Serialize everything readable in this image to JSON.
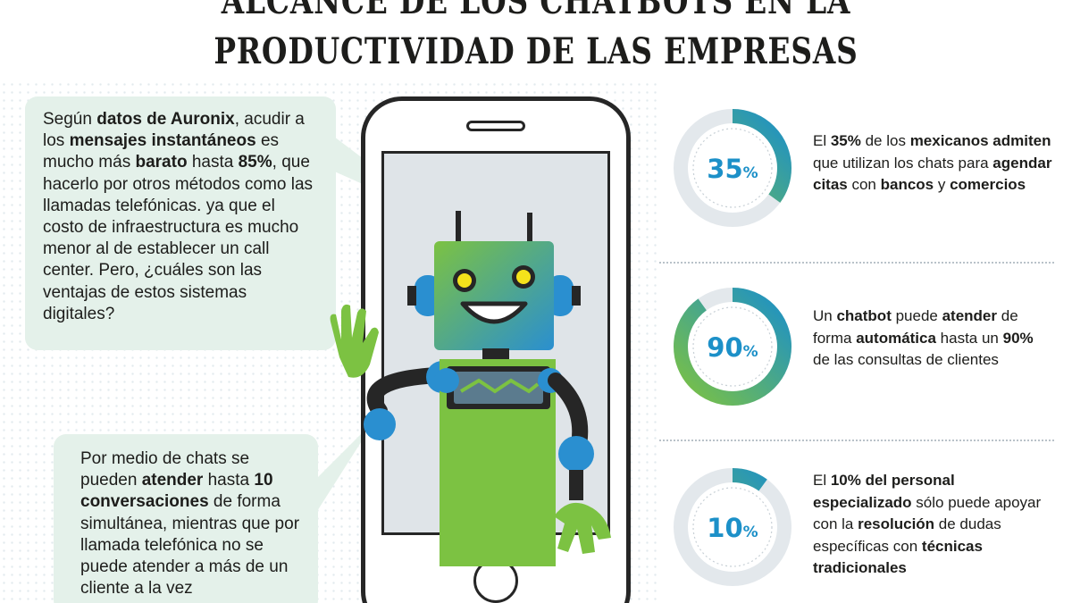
{
  "title": {
    "line1": "ALCANCE DE LOS CHATBOTS EN LA",
    "line2": "PRODUCTIVIDAD DE LAS EMPRESAS"
  },
  "bubble_top": {
    "segments": [
      {
        "t": "Según ",
        "b": false
      },
      {
        "t": "datos de Auronix",
        "b": true
      },
      {
        "t": ", acudir a los ",
        "b": false
      },
      {
        "t": "mensajes instantáneos",
        "b": true
      },
      {
        "t": " es mucho más ",
        "b": false
      },
      {
        "t": "barato",
        "b": true
      },
      {
        "t": " hasta ",
        "b": false
      },
      {
        "t": "85%",
        "b": true
      },
      {
        "t": ", que hacerlo por otros métodos como las llamadas telefónicas. ya que el costo de infraestructura es mucho menor al de establecer un call center. Pero, ¿cuáles son las ventajas de estos sistemas digitales?",
        "b": false
      }
    ]
  },
  "bubble_bottom": {
    "segments": [
      {
        "t": "Por medio de chats se pueden ",
        "b": false
      },
      {
        "t": "atender",
        "b": true
      },
      {
        "t": " hasta ",
        "b": false
      },
      {
        "t": "10 conversaciones",
        "b": true
      },
      {
        "t": " de forma simultánea, mientras que por llamada telefónica no se puede atender a más de un cliente a la vez",
        "b": false
      }
    ]
  },
  "stats": [
    {
      "value": "35",
      "unit": "%",
      "fraction": 0.35,
      "segments": [
        {
          "t": "El ",
          "b": false
        },
        {
          "t": "35%",
          "b": true
        },
        {
          "t": " de los ",
          "b": false
        },
        {
          "t": "mexicanos admiten",
          "b": true
        },
        {
          "t": " que utilizan los chats para ",
          "b": false
        },
        {
          "t": "agendar citas",
          "b": true
        },
        {
          "t": " con ",
          "b": false
        },
        {
          "t": "bancos",
          "b": true
        },
        {
          "t": " y ",
          "b": false
        },
        {
          "t": "comercios",
          "b": true
        }
      ]
    },
    {
      "value": "90",
      "unit": "%",
      "fraction": 0.9,
      "segments": [
        {
          "t": "Un ",
          "b": false
        },
        {
          "t": "chatbot",
          "b": true
        },
        {
          "t": " puede ",
          "b": false
        },
        {
          "t": "atender",
          "b": true
        },
        {
          "t": " de forma ",
          "b": false
        },
        {
          "t": "automática",
          "b": true
        },
        {
          "t": " hasta un ",
          "b": false
        },
        {
          "t": "90%",
          "b": true
        },
        {
          "t": " de las consultas de clientes",
          "b": false
        }
      ]
    },
    {
      "value": "10",
      "unit": "%",
      "fraction": 0.1,
      "segments": [
        {
          "t": "El ",
          "b": false
        },
        {
          "t": "10% del personal especializado",
          "b": true
        },
        {
          "t": " sólo puede apoyar con la ",
          "b": false
        },
        {
          "t": "resolución",
          "b": true
        },
        {
          "t": " de dudas específicas con ",
          "b": false
        },
        {
          "t": "técnicas tradicionales",
          "b": true
        }
      ]
    }
  ],
  "colors": {
    "ring_track": "#e3e8ec",
    "ring_start": "#7cc242",
    "ring_end": "#1c90c8",
    "bubble": "#e4f1ea",
    "robot_green": "#7cc242",
    "robot_blue": "#2a8fd0",
    "phone_outline": "#262626"
  },
  "icons": [
    "smartphone-icon",
    "robot-icon",
    "progress-ring-icon"
  ]
}
